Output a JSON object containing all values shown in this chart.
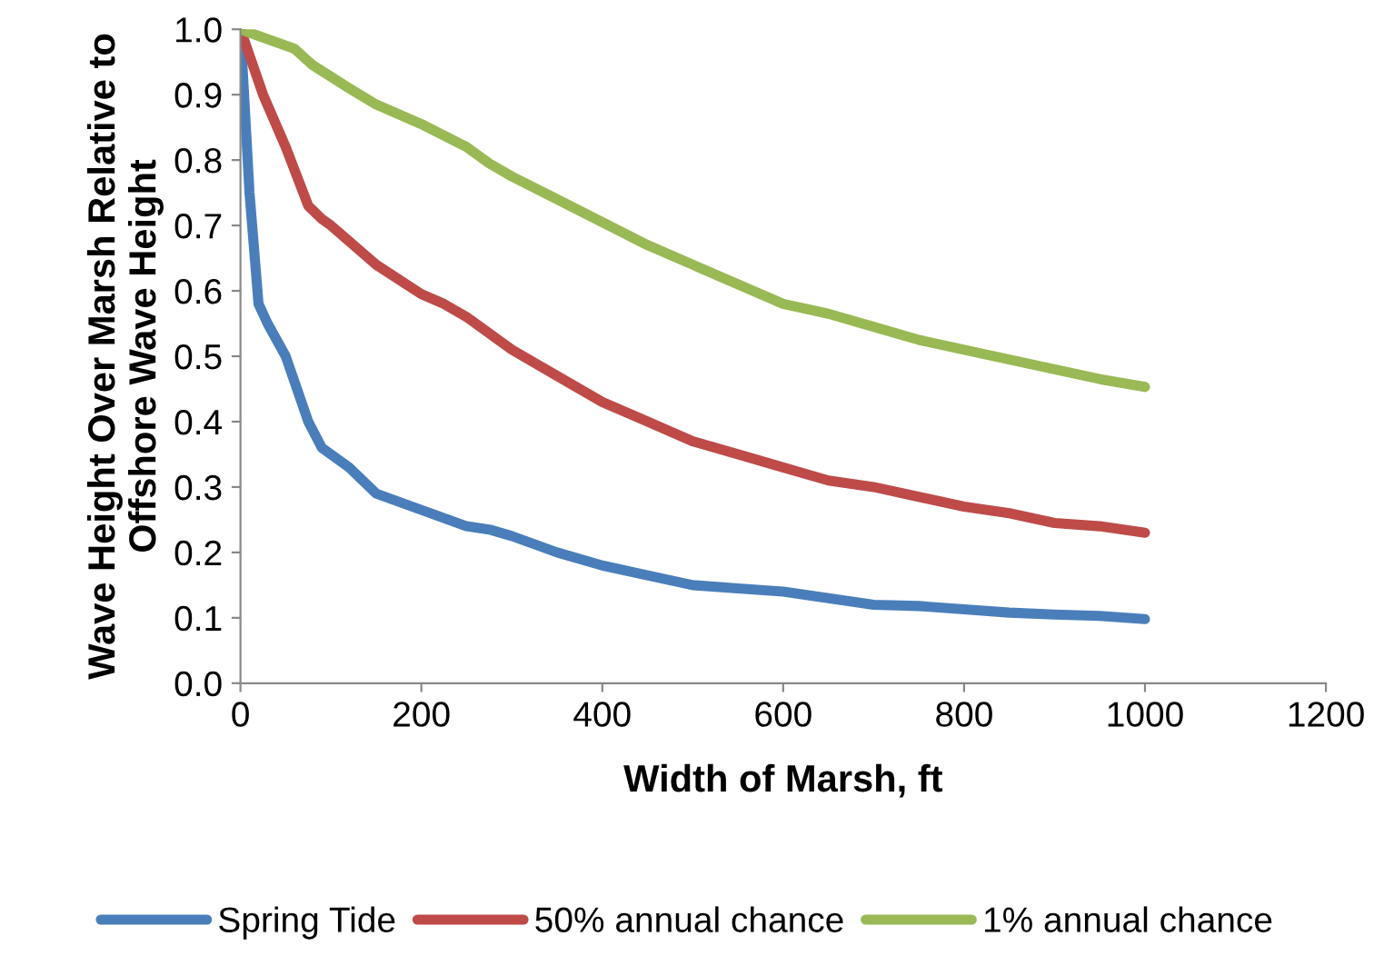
{
  "chart_data": {
    "type": "line",
    "xlabel": "Width of Marsh, ft",
    "ylabel": "Wave Height Over Marsh Relative to\nOffshore Wave Height",
    "xlim": [
      0,
      1200
    ],
    "xticks": [
      0,
      200,
      400,
      600,
      800,
      1000,
      1200
    ],
    "ylim": [
      0,
      1
    ],
    "yticks": [
      {
        "value": 0,
        "label": "0.0"
      },
      {
        "value": 0.1,
        "label": "0.1"
      },
      {
        "value": 0.2,
        "label": "0.2"
      },
      {
        "value": 0.3,
        "label": "0.3"
      },
      {
        "value": 0.4,
        "label": "0.4"
      },
      {
        "value": 0.5,
        "label": "0.5"
      },
      {
        "value": 0.6,
        "label": "0.6"
      },
      {
        "value": 0.7,
        "label": "0.7"
      },
      {
        "value": 0.8,
        "label": "0.8"
      },
      {
        "value": 0.9,
        "label": "0.9"
      },
      {
        "value": 1,
        "label": "1.0"
      }
    ],
    "grid": false,
    "legend": "bottom",
    "marker": "none",
    "line_style": "solid",
    "series": [
      {
        "name": "Spring Tide",
        "color": "#4a7ebb",
        "x": [
          0,
          10,
          20,
          30,
          50,
          75,
          90,
          120,
          150,
          200,
          250,
          275,
          300,
          350,
          400,
          450,
          500,
          550,
          600,
          650,
          700,
          750,
          800,
          850,
          900,
          950,
          1000
        ],
        "values": [
          1.0,
          0.75,
          0.58,
          0.55,
          0.5,
          0.4,
          0.36,
          0.33,
          0.29,
          0.265,
          0.24,
          0.235,
          0.225,
          0.2,
          0.18,
          0.165,
          0.15,
          0.145,
          0.14,
          0.13,
          0.12,
          0.118,
          0.113,
          0.108,
          0.105,
          0.103,
          0.098
        ]
      },
      {
        "name": "50% annual chance",
        "color": "#be4b48",
        "x": [
          0,
          25,
          50,
          75,
          90,
          100,
          150,
          200,
          225,
          250,
          300,
          350,
          400,
          450,
          500,
          550,
          600,
          650,
          700,
          750,
          800,
          850,
          900,
          950,
          1000
        ],
        "values": [
          1.0,
          0.9,
          0.82,
          0.73,
          0.71,
          0.7,
          0.64,
          0.595,
          0.58,
          0.56,
          0.51,
          0.47,
          0.43,
          0.4,
          0.37,
          0.35,
          0.33,
          0.31,
          0.3,
          0.285,
          0.27,
          0.26,
          0.245,
          0.24,
          0.23
        ]
      },
      {
        "name": "1% annual chance",
        "color": "#98b954",
        "x": [
          0,
          20,
          60,
          80,
          120,
          150,
          200,
          250,
          275,
          300,
          350,
          400,
          450,
          500,
          550,
          600,
          650,
          700,
          750,
          800,
          850,
          900,
          950,
          1000
        ],
        "values": [
          1.0,
          0.99,
          0.97,
          0.945,
          0.91,
          0.885,
          0.855,
          0.82,
          0.795,
          0.775,
          0.74,
          0.705,
          0.67,
          0.64,
          0.61,
          0.58,
          0.565,
          0.545,
          0.525,
          0.51,
          0.495,
          0.48,
          0.465,
          0.453
        ]
      }
    ]
  }
}
